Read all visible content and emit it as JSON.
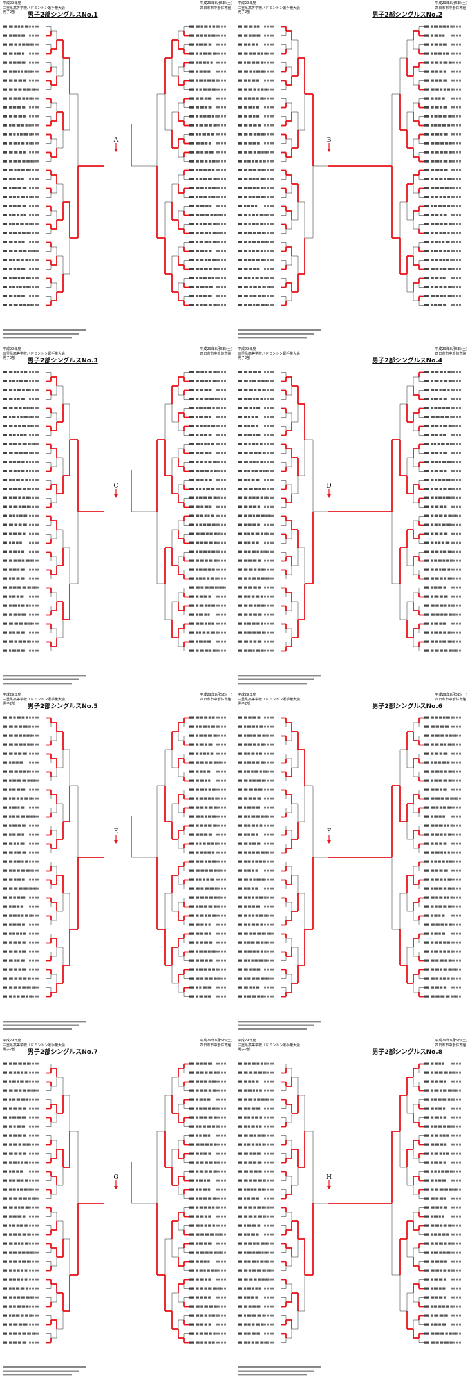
{
  "header": {
    "school_year": "平成29年度",
    "tournament": "三重県高等学校バドミントン選手権大会",
    "category": "男子2部",
    "date": "平成29年8月5日(土)",
    "venue": "四日市市中部体育館"
  },
  "brackets": [
    {
      "title": "男子2部シングルスNo.1",
      "block_letter": "A"
    },
    {
      "title": "男子2部シングルスNo.2",
      "block_letter": "B"
    },
    {
      "title": "男子2部シングルスNo.3",
      "block_letter": "C"
    },
    {
      "title": "男子2部シングルスNo.4",
      "block_letter": "D"
    },
    {
      "title": "男子2部シングルスNo.5",
      "block_letter": "E"
    },
    {
      "title": "男子2部シングルスNo.6",
      "block_letter": "F"
    },
    {
      "title": "男子2部シングルスNo.7",
      "block_letter": "G"
    },
    {
      "title": "男子2部シングルスNo.8",
      "block_letter": "H"
    }
  ],
  "colors": {
    "winner_line": "#e8141c",
    "bracket_line": "#222222"
  }
}
